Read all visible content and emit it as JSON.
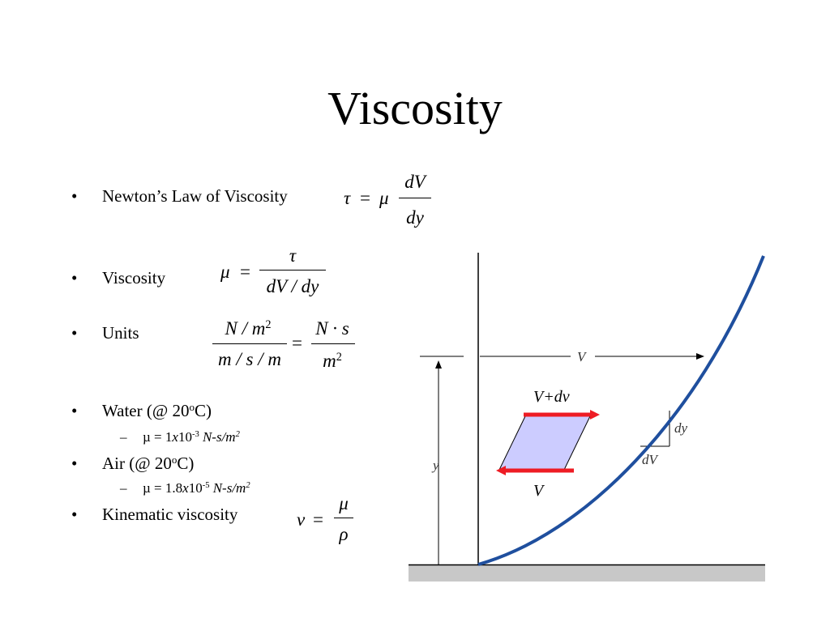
{
  "slide": {
    "title": "Viscosity",
    "bullets": [
      {
        "text": "Newton’s Law of Viscosity"
      },
      {
        "text": "Viscosity"
      },
      {
        "text": "Units"
      },
      {
        "text": "Water (@ 20",
        "sup": "o",
        "after": "C)"
      },
      {
        "text": "Air (@ 20",
        "sup": "o",
        "after": "C)"
      },
      {
        "text": "Kinematic viscosity"
      }
    ],
    "sub_bullets": [
      {
        "dash": "–",
        "mu": "µ",
        "eq": " = 1",
        "x": "x",
        "ten": "10",
        "exp": "-3",
        "units": " N-s/m",
        "units_exp": "2"
      },
      {
        "dash": "–",
        "mu": "µ",
        "eq": " = 1.8",
        "x": "x",
        "ten": "10",
        "exp": "-5",
        "units": " N-s/m",
        "units_exp": "2"
      }
    ],
    "bullet_char": "•"
  },
  "equations": {
    "newton": {
      "lhs": "τ",
      "equals": "=",
      "mu": "μ",
      "num": "dV",
      "den": "dy"
    },
    "viscosity": {
      "lhs": "μ",
      "equals": "=",
      "num": "τ",
      "den": "dV / dy"
    },
    "units": {
      "num_left": "N / m",
      "num_left_exp": "2",
      "den_left": "m / s / m",
      "equals": "=",
      "num_right": "N · s",
      "den_right": "m",
      "den_right_exp": "2"
    },
    "kinematic": {
      "lhs": "ν",
      "equals": "=",
      "num": "μ",
      "den": "ρ"
    }
  },
  "diagram": {
    "label_V": "V",
    "label_Vdv": "V+dv",
    "label_V_bottom": "V",
    "label_y": "y",
    "label_dy": "dy",
    "label_dV": "dV",
    "colors": {
      "profile": "#1f4f9e",
      "arrow": "#ee1c24",
      "element_fill": "#ccccff",
      "floor": "#c8c8c8"
    }
  }
}
